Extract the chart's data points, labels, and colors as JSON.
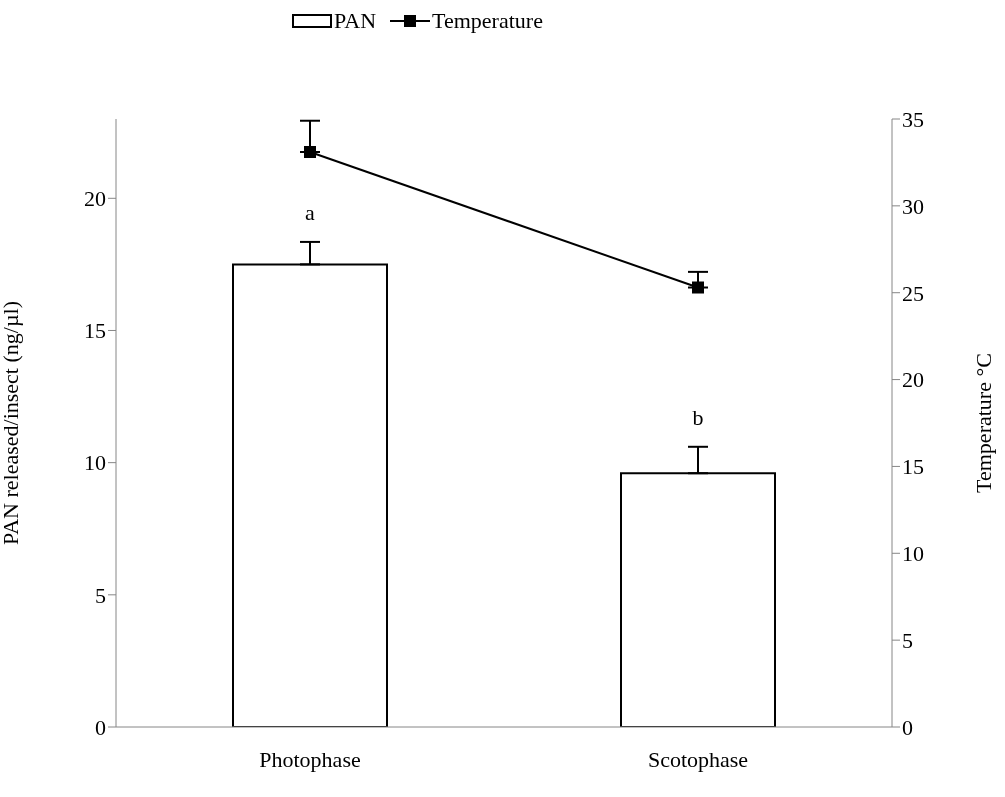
{
  "chart_data": {
    "type": "bar",
    "categories": [
      "Photophase",
      "Scotophase"
    ],
    "series": [
      {
        "name": "PAN",
        "color": "#ffffff",
        "values": [
          17.5,
          9.6
        ],
        "errors": [
          [
            17.5,
            18.35
          ],
          [
            9.6,
            10.6
          ]
        ]
      },
      {
        "name": "Temperature",
        "type": "line",
        "axis": "y2",
        "color": "#000000",
        "marker": "square",
        "values": [
          33.1,
          25.3
        ],
        "errors": [
          [
            33.1,
            34.9
          ],
          [
            25.3,
            26.2
          ]
        ]
      }
    ],
    "ylabel": "PAN released/insect (ng/µl)",
    "y2label": "Temperature °C",
    "ylim": [
      0,
      23
    ],
    "yticks": [
      0,
      5,
      10,
      15,
      20
    ],
    "y2lim": [
      0,
      35
    ],
    "y2ticks": [
      0,
      5,
      10,
      15,
      20,
      25,
      30,
      35
    ],
    "legend": "top",
    "annotations": [
      "a",
      "b"
    ]
  }
}
